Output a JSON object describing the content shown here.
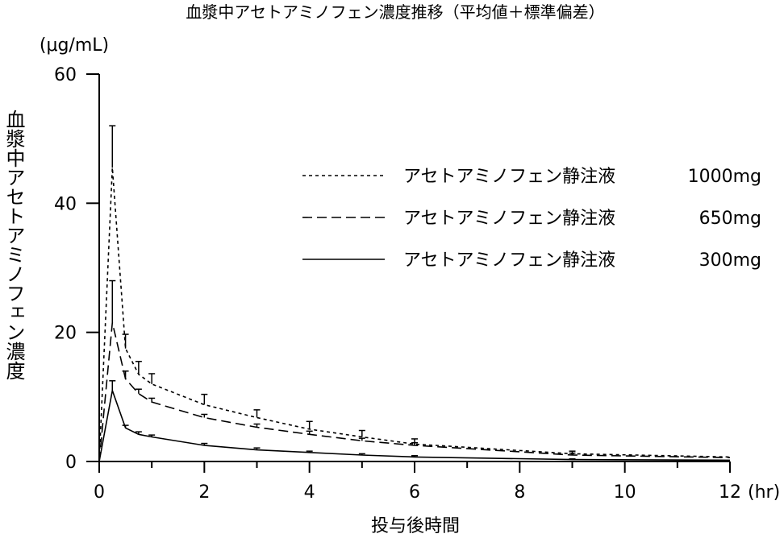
{
  "chart_data": {
    "type": "line",
    "title": "血漿中アセトアミノフェン濃度推移（平均値＋標準偏差）",
    "ylabel": "血漿中アセトアミノフェン濃度",
    "yunit": "(μg/mL)",
    "xlabel": "投与後時間",
    "xunit": "(hr)",
    "xlim": [
      0,
      12
    ],
    "ylim": [
      0,
      60
    ],
    "xticks": [
      "0",
      "2",
      "4",
      "6",
      "8",
      "10",
      "12"
    ],
    "yticks": [
      "0",
      "20",
      "40",
      "60"
    ],
    "legend_position": "top-right",
    "series": [
      {
        "name": "アセトアミノフェン静注液",
        "dose": "1000mg",
        "style": "dotted",
        "x": [
          0,
          0.25,
          0.5,
          0.75,
          1,
          2,
          3,
          4,
          5,
          6,
          9,
          12
        ],
        "y": [
          0,
          45.5,
          17.5,
          13.5,
          12.0,
          8.8,
          6.8,
          5.0,
          3.8,
          2.7,
          1.2,
          0.7
        ],
        "sd": [
          0,
          6.5,
          2.2,
          2.0,
          1.6,
          1.6,
          1.2,
          1.2,
          1.0,
          0.8,
          0.4,
          0
        ]
      },
      {
        "name": "アセトアミノフェン静注液",
        "dose": "650mg",
        "style": "dashed",
        "x": [
          0,
          0.25,
          0.5,
          0.75,
          1,
          2,
          3,
          4,
          5,
          6,
          9,
          12
        ],
        "y": [
          0,
          21.5,
          12.8,
          10.5,
          9.2,
          6.8,
          5.3,
          4.2,
          3.2,
          2.5,
          1.0,
          0.6
        ],
        "sd": [
          0,
          6.5,
          1.2,
          0.7,
          0.6,
          0.5,
          0.5,
          0.5,
          0.4,
          0.4,
          0.3,
          0
        ]
      },
      {
        "name": "アセトアミノフェン静注液",
        "dose": "300mg",
        "style": "solid",
        "x": [
          0,
          0.25,
          0.5,
          0.75,
          1,
          2,
          3,
          4,
          5,
          6,
          9,
          12
        ],
        "y": [
          0,
          11.0,
          5.2,
          4.2,
          3.8,
          2.5,
          1.8,
          1.4,
          1.0,
          0.7,
          0.3,
          0.2
        ],
        "sd": [
          0,
          1.5,
          0.4,
          0.4,
          0.3,
          0.3,
          0.3,
          0.2,
          0.2,
          0.2,
          0.1,
          0
        ]
      }
    ]
  }
}
